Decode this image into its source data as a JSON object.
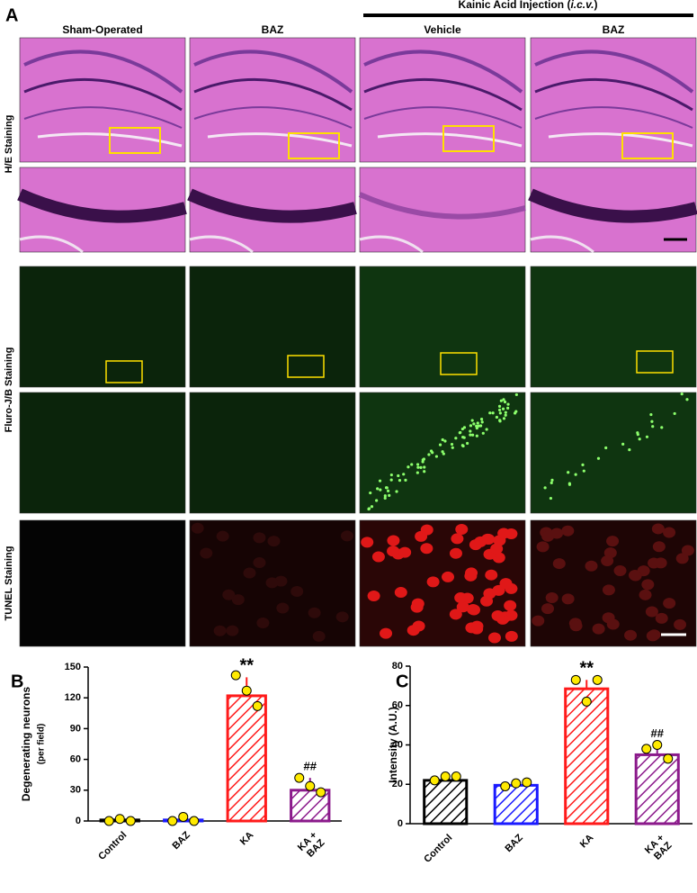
{
  "figure": {
    "panel_label": "A",
    "group_header": {
      "before": "Kainic Acid Injection (",
      "italic": "i.c.v.",
      "after": ")"
    },
    "columns": [
      "Sham-Operated",
      "BAZ",
      "Vehicle",
      "BAZ"
    ],
    "rows": [
      "H/E Staining",
      "Fluro-J/B Staining",
      "TUNEL Staining"
    ]
  },
  "chart_data": [
    {
      "type": "bar",
      "panel_label": "B",
      "ylabel": "Degenerating neurons",
      "ylabel_note": "(per field)",
      "categories": [
        "Control",
        "BAZ",
        "KA",
        "KA +\nBAZ"
      ],
      "values": [
        1,
        1,
        122,
        30
      ],
      "errors": [
        1,
        2,
        18,
        12
      ],
      "points": [
        [
          0,
          2,
          0
        ],
        [
          0,
          4,
          0
        ],
        [
          142,
          127,
          112
        ],
        [
          42,
          34,
          28
        ]
      ],
      "annotations": [
        null,
        null,
        "**",
        "##"
      ],
      "colors": [
        "#000000",
        "#1a1aff",
        "#ff1a1a",
        "#8b1a8b"
      ],
      "point_color": "#ffea00",
      "ylim": [
        0,
        150
      ],
      "yticks": [
        0,
        30,
        60,
        90,
        120,
        150
      ]
    },
    {
      "type": "bar",
      "panel_label": "C",
      "ylabel": "Intensity (A.U.)",
      "categories": [
        "Control",
        "BAZ",
        "KA",
        "KA +\nBAZ"
      ],
      "values": [
        22,
        19.5,
        68.5,
        35
      ],
      "errors": [
        2,
        1,
        4.5,
        5
      ],
      "points": [
        [
          22,
          24,
          24
        ],
        [
          19,
          20.5,
          21
        ],
        [
          73,
          62,
          73
        ],
        [
          38,
          40,
          33
        ]
      ],
      "annotations": [
        null,
        null,
        "**",
        "##"
      ],
      "colors": [
        "#000000",
        "#1a1aff",
        "#ff1a1a",
        "#8b1a8b"
      ],
      "point_color": "#ffea00",
      "ylim": [
        0,
        80
      ],
      "yticks": [
        0,
        20,
        40,
        60,
        80
      ]
    }
  ]
}
